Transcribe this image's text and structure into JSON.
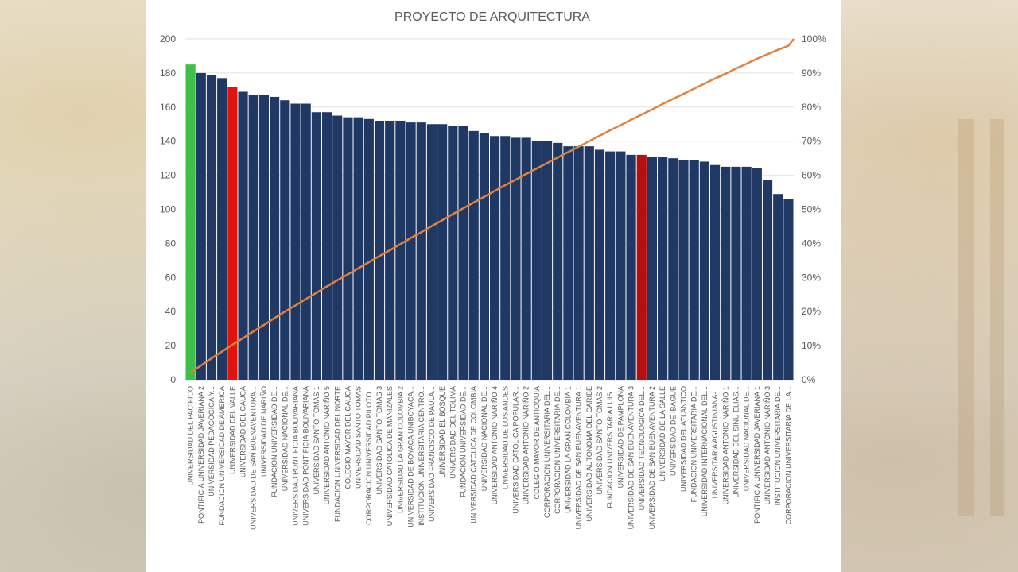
{
  "colors": {
    "bar": "#1f3864",
    "highlight_best": "#3cc04a",
    "highlight_red": "#e3120b",
    "highlight_dark_red": "#b50f0f",
    "cumulative_line": "#e0823d",
    "grid": "#e2e2e2",
    "text": "#595959"
  },
  "chart_data": {
    "type": "bar",
    "title": "PROYECTO DE ARQUITECTURA",
    "ylim": [
      0,
      200
    ],
    "y_ticks": [
      0,
      20,
      40,
      60,
      80,
      100,
      120,
      140,
      160,
      180,
      200
    ],
    "y2_ticks": [
      "0%",
      "10%",
      "20%",
      "30%",
      "40%",
      "50%",
      "60%",
      "70%",
      "80%",
      "90%",
      "100%"
    ],
    "grid": true,
    "categories": [
      "UNIVERSIDAD DEL PACIFICO",
      "PONTIFICIA UNIVERSIDAD JAVERIANA 2",
      "UNIVERSIDAD PEDAGOGICA Y...",
      "FUNDACION UNIVERSIDAD DE AMERICA",
      "UNIVERSIDAD DEL VALLE",
      "UNIVERSIDAD DEL CAUCA",
      "UNIVERSIDAD DE SAN BUENAVENTURA...",
      "UNIVERSIDAD DE NARIÑO",
      "FUNDACION UNIVERSIDAD DE...",
      "UNIVERSIDAD NACIONAL DE...",
      "UNIVERSIDAD PONTIFICIA BOLIVARIANA",
      "UNIVERSIDAD PONTIFICIA BOLIVARIANA",
      "UNIVERSIDAD SANTO TOMAS 1",
      "UNIVERSIDAD ANTONIO NARIÑO 5",
      "FUNDACION UNIVERSIDAD DEL NORTE",
      "COLEGIO MAYOR DEL CAUCA",
      "UNIVERSIDAD SANTO TOMAS",
      "CORPORACION UNIVERSIDAD PILOTO...",
      "UNIVERSIDAD SANTO TOMAS 3",
      "UNIVERSIDAD CATOLICA DE MANIZALES",
      "UNIVERSIDAD LA GRAN COLOMBIA 2",
      "UNIVERSIDAD DE BOYACA UNIBOYACA...",
      "INSTITUCION UNIVERSITARIA CENTRO...",
      "UNIVERSIDAD FRANCISCO DE PAULA...",
      "UNIVERSIDAD EL BOSQUE",
      "UNIVERSIDAD DEL TOLIMA",
      "FUNDACION UNIVERSIDAD DE...",
      "UNIVERSIDAD CATOLICA DE COLOMBIA",
      "UNIVERSIDAD NACIONAL DE...",
      "UNIVERSIDAD ANTONIO NARIÑO 4",
      "UNIVERSIDAD DE LOS ANDES",
      "UNIVERSIDAD CATOLICA POPULAR...",
      "UNIVERSIDAD ANTONIO NARIÑO 2",
      "COLEGIO MAYOR DE ANTIOQUIA",
      "CORPORACION UNIVERSITARIA DEL...",
      "CORPORACION UNIVERSITARIA DE...",
      "UNIVERSIDAD LA GRAN COLOMBIA 1",
      "UNIVERSIDAD DE SAN BUENAVENTURA 1",
      "UNIVERSIDAD AUTONOMA DEL CARIBE",
      "UNIVERSIDAD SANTO TOMAS 2",
      "FUNDACION UNIVERSITARIA LUIS...",
      "UNIVERSIDAD DE PAMPLONA",
      "UNIVERSIDAD DE SAN BUENAVENTURA 3",
      "UNIVERSIDAD TECNOLOGICA DEL...",
      "UNIVERSIDAD DE SAN BUENAVENTURA 2",
      "UNIVERSIDAD DE LA SALLE",
      "UNIVERSIDAD DE IBAGUE",
      "UNIVERSIDAD DEL ATLANTICO",
      "FUNDACION UNIVERSITARIA DE...",
      "UNIVERSIDAD INTERNACIONAL DEL...",
      "UNIVERSITARIA AGUSTINIANA-...",
      "UNIVERSIDAD ANTONIO NARIÑO 1",
      "UNIVERSIDAD DEL SINU ELIAS...",
      "UNIVERSIDAD NACIONAL DE...",
      "PONTIFICIA UNIVERSIDAD JAVERIANA 1",
      "UNIVERSIDAD ANTONIO NARIÑO 3",
      "INSTITUCION UNIVERSITARIA DE...",
      "CORPORACION UNIVERSITARIA DE LA..."
    ],
    "series": [
      {
        "values": [
          185,
          180,
          179,
          177,
          172,
          169,
          167,
          167,
          166,
          164,
          162,
          162,
          157,
          157,
          155,
          154,
          154,
          153,
          152,
          152,
          152,
          151,
          151,
          150,
          150,
          149,
          149,
          146,
          145,
          143,
          143,
          142,
          142,
          140,
          140,
          139,
          137,
          137,
          137,
          135,
          134,
          134,
          132,
          132,
          131,
          131,
          130,
          129,
          129,
          128,
          126,
          125,
          125,
          125,
          124,
          117,
          109,
          106
        ],
        "highlights": {
          "0": "best",
          "4": "red",
          "43": "dark_red"
        }
      },
      {
        "type": "line",
        "axis": "secondary",
        "values_percent": [
          2.1,
          4.2,
          6.3,
          8.3,
          10.3,
          12.2,
          14.2,
          16.1,
          18.1,
          20.0,
          21.8,
          23.7,
          25.5,
          27.4,
          29.2,
          30.9,
          32.7,
          34.5,
          36.3,
          38.0,
          39.8,
          41.6,
          43.3,
          45.1,
          46.8,
          48.6,
          50.3,
          52.0,
          53.7,
          55.4,
          57.1,
          58.7,
          60.4,
          62.0,
          63.6,
          65.2,
          66.8,
          68.4,
          70.0,
          71.6,
          73.2,
          74.7,
          76.3,
          77.8,
          79.3,
          80.9,
          82.4,
          83.9,
          85.4,
          86.9,
          88.4,
          89.8,
          91.3,
          92.7,
          94.2,
          95.5,
          96.8,
          98.0
        ]
      }
    ]
  }
}
